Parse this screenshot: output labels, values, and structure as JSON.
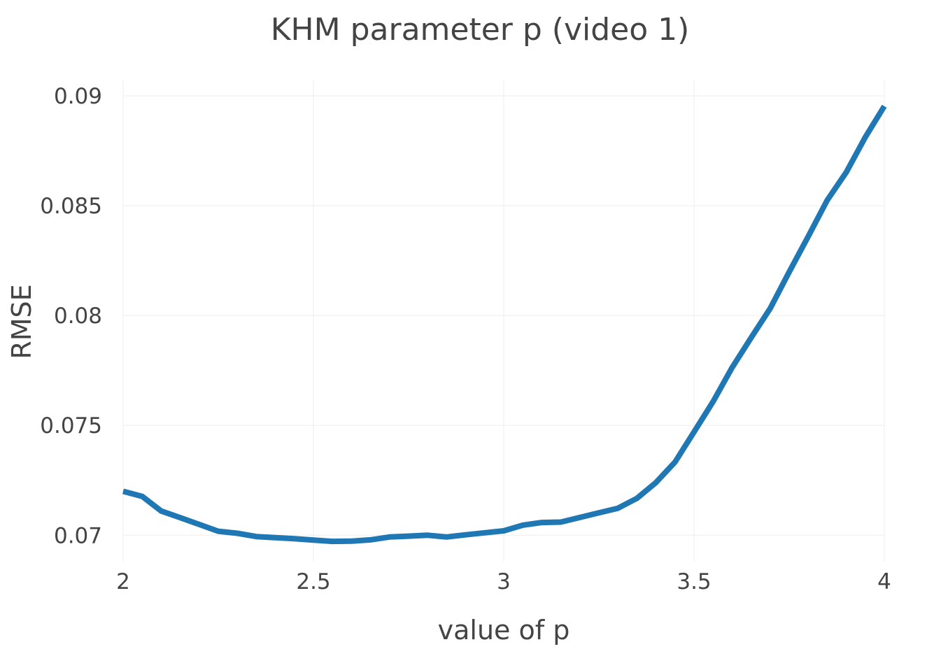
{
  "chart_data": {
    "type": "line",
    "title": "KHM parameter p (video 1)",
    "xlabel": "value of p",
    "ylabel": "RMSE",
    "xlim": [
      2,
      4
    ],
    "ylim": [
      0.0688,
      0.0907
    ],
    "xticks": [
      2,
      2.5,
      3,
      3.5,
      4
    ],
    "yticks": [
      0.07,
      0.075,
      0.08,
      0.085,
      0.09
    ],
    "xtick_labels": [
      "2",
      "2.5",
      "3",
      "3.5",
      "4"
    ],
    "ytick_labels": [
      "0.07",
      "0.075",
      "0.08",
      "0.085",
      "0.09"
    ],
    "grid": true,
    "line_color": "#1f77b4",
    "x": [
      2.0,
      2.05,
      2.1,
      2.15,
      2.2,
      2.25,
      2.3,
      2.35,
      2.4,
      2.45,
      2.5,
      2.55,
      2.6,
      2.65,
      2.7,
      2.75,
      2.8,
      2.85,
      2.9,
      2.95,
      3.0,
      3.05,
      3.1,
      3.15,
      3.2,
      3.25,
      3.3,
      3.35,
      3.4,
      3.45,
      3.5,
      3.55,
      3.6,
      3.65,
      3.7,
      3.75,
      3.8,
      3.85,
      3.9,
      3.95,
      4.0
    ],
    "series": [
      {
        "values": [
          0.072,
          0.07177,
          0.0711,
          0.0708,
          0.07049,
          0.07018,
          0.07009,
          0.06994,
          0.06989,
          0.06984,
          0.06978,
          0.06972,
          0.06973,
          0.06979,
          0.06992,
          0.06996,
          0.07,
          0.06992,
          0.07002,
          0.07011,
          0.0702,
          0.07046,
          0.07058,
          0.0706,
          0.07081,
          0.07102,
          0.07123,
          0.07168,
          0.0724,
          0.07333,
          0.0747,
          0.07608,
          0.07763,
          0.07899,
          0.08032,
          0.08198,
          0.0836,
          0.08525,
          0.08652,
          0.08812,
          0.08953
        ]
      }
    ]
  }
}
